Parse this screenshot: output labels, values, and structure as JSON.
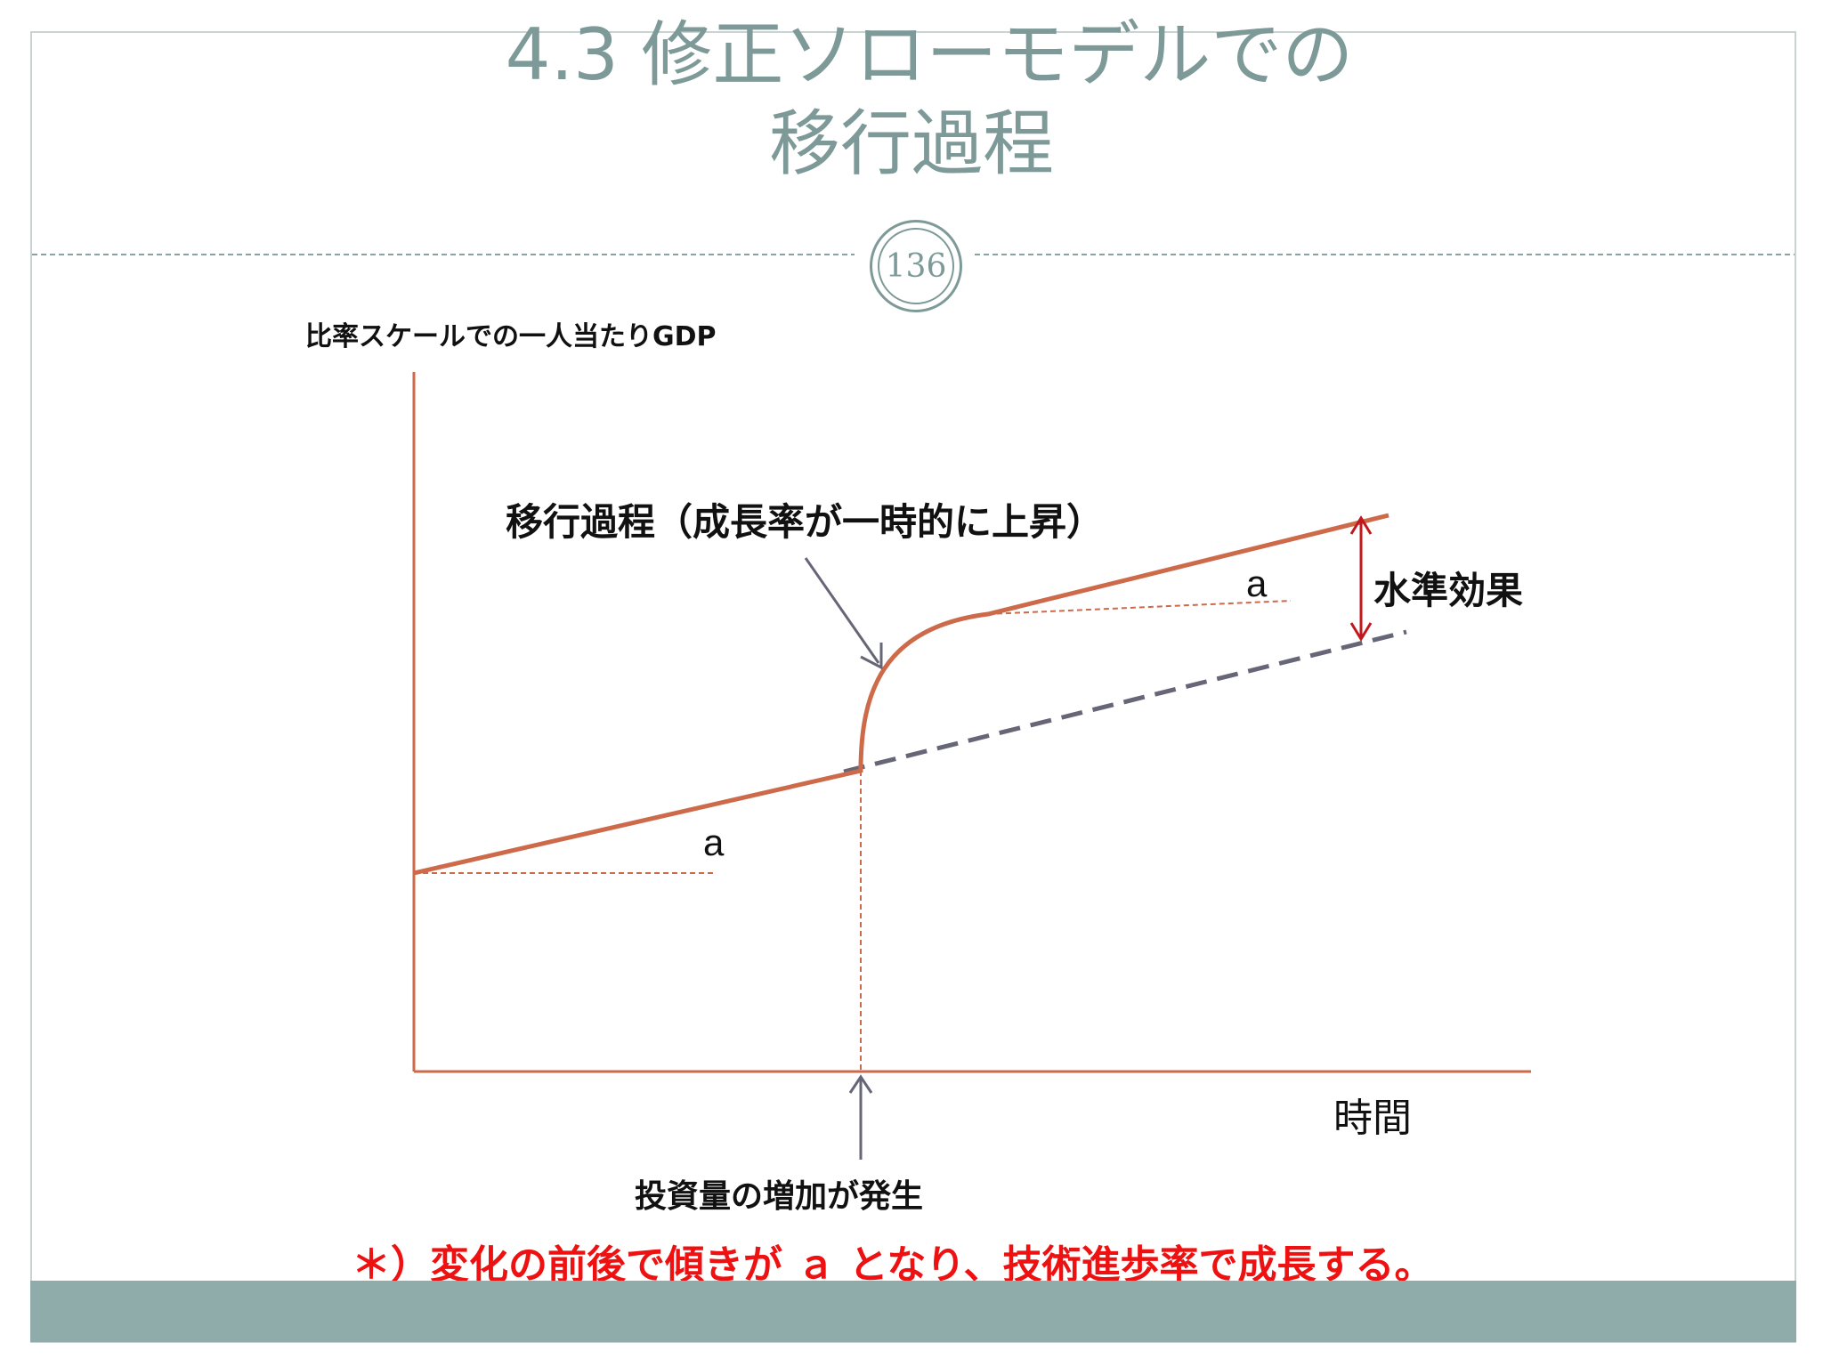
{
  "slide": {
    "title_line1": "4.3 修正ソローモデルでの",
    "title_line2": "移行過程",
    "page_number": "136"
  },
  "diagram": {
    "y_axis_label": "比率スケールでの一人当たりGDP",
    "x_axis_label": "時間",
    "transition_label": "移行過程（成長率が一時的に上昇）",
    "level_effect_label": "水準効果",
    "slope_label_before": "a",
    "slope_label_after": "a",
    "investment_label": "投資量の増加が発生"
  },
  "footnote": "＊）変化の前後で傾きが ａ となり、技術進歩率で成長する。",
  "colors": {
    "title": "#7d9a98",
    "curve": "#cc6a4a",
    "dashed_trend": "#666677",
    "level_arrow": "#c0181d",
    "footnote": "#ee1111",
    "band": "#8fabaa"
  }
}
